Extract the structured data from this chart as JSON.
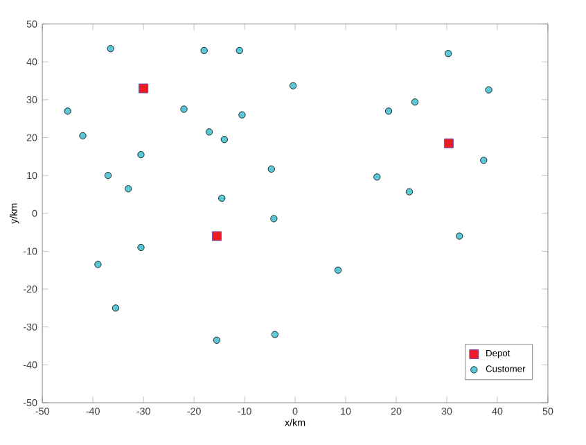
{
  "chart_data": {
    "type": "scatter",
    "xlabel": "x/km",
    "ylabel": "y/km",
    "xlim": [
      -50,
      50
    ],
    "ylim": [
      -50,
      50
    ],
    "xticks": [
      -50,
      -40,
      -30,
      -20,
      -10,
      0,
      10,
      20,
      30,
      40,
      50
    ],
    "yticks": [
      -50,
      -40,
      -30,
      -20,
      -10,
      0,
      10,
      20,
      30,
      40,
      50
    ],
    "legend": "bottom right",
    "series": [
      {
        "name": "Depot",
        "color": "#ed1c24",
        "marker": "square",
        "x": [
          -30,
          -15.5,
          30.4
        ],
        "values": [
          33,
          -6,
          18.5
        ]
      },
      {
        "name": "Customer",
        "color": "#5bc8d7",
        "marker": "circle",
        "x": [
          -45,
          -42,
          -36.5,
          -37,
          -33,
          -30.5,
          -22,
          -18,
          -17,
          -14,
          -11,
          -10.5,
          -14.5,
          -4.7,
          -4.2,
          -0.4,
          18.5,
          23.7,
          30.3,
          38.3,
          16.2,
          22.6,
          37.3,
          32.5,
          8.5,
          -39,
          -30.5,
          -35.5,
          -15.5,
          -4
        ],
        "values": [
          27,
          20.5,
          43.5,
          10,
          6.5,
          15.5,
          27.5,
          43,
          21.5,
          19.5,
          43,
          26,
          4,
          11.7,
          -1.4,
          33.7,
          27,
          29.4,
          42.2,
          32.6,
          9.6,
          5.7,
          14,
          -6,
          -15,
          -13.5,
          -9,
          -25,
          -33.5,
          -32
        ]
      }
    ]
  }
}
